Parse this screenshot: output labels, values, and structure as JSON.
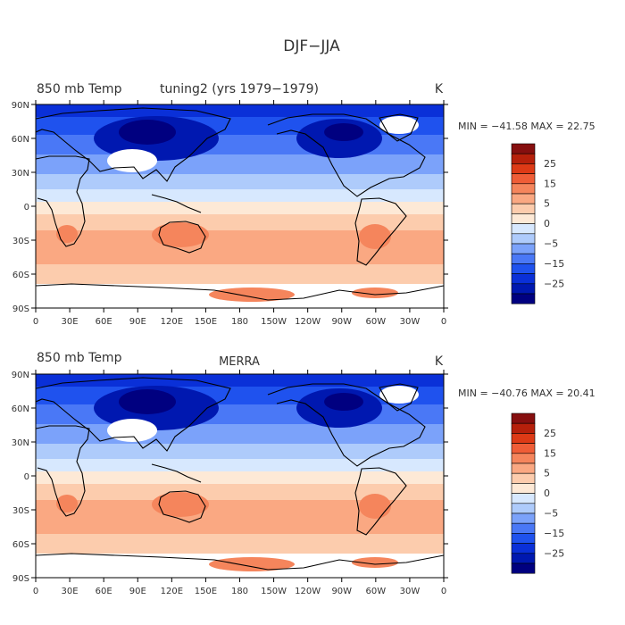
{
  "title": "DJF−JJA",
  "units": "K",
  "panels": [
    {
      "left_title": "850 mb Temp",
      "center_title": "tuning2 (yrs 1979−1979)",
      "stats": "MIN = −41.58  MAX =  22.75"
    },
    {
      "left_title": "850 mb Temp",
      "center_title": "MERRA",
      "stats": "MIN = −40.76  MAX =  20.41"
    }
  ],
  "lon_ticks": [
    "0",
    "30E",
    "60E",
    "90E",
    "120E",
    "150E",
    "180",
    "150W",
    "120W",
    "90W",
    "60W",
    "30W",
    "0"
  ],
  "lat_ticks": [
    "90N",
    "60N",
    "30N",
    "0",
    "30S",
    "60S",
    "90S"
  ],
  "colorbar": {
    "colors": [
      "#000080",
      "#0018b0",
      "#0a30d8",
      "#1f52ee",
      "#4a78f6",
      "#7ba2fa",
      "#aecbfb",
      "#d7e8fe",
      "#fde9d6",
      "#fcccad",
      "#faa882",
      "#f5855c",
      "#ef5d37",
      "#dd3a16",
      "#b6200b",
      "#860f0f"
    ],
    "labels": [
      "−25",
      "−15",
      "−5",
      "0",
      "5",
      "15",
      "25"
    ]
  },
  "colors": {
    "land_outline": "#000000",
    "missing": "#ffffff",
    "frame": "#000000"
  }
}
